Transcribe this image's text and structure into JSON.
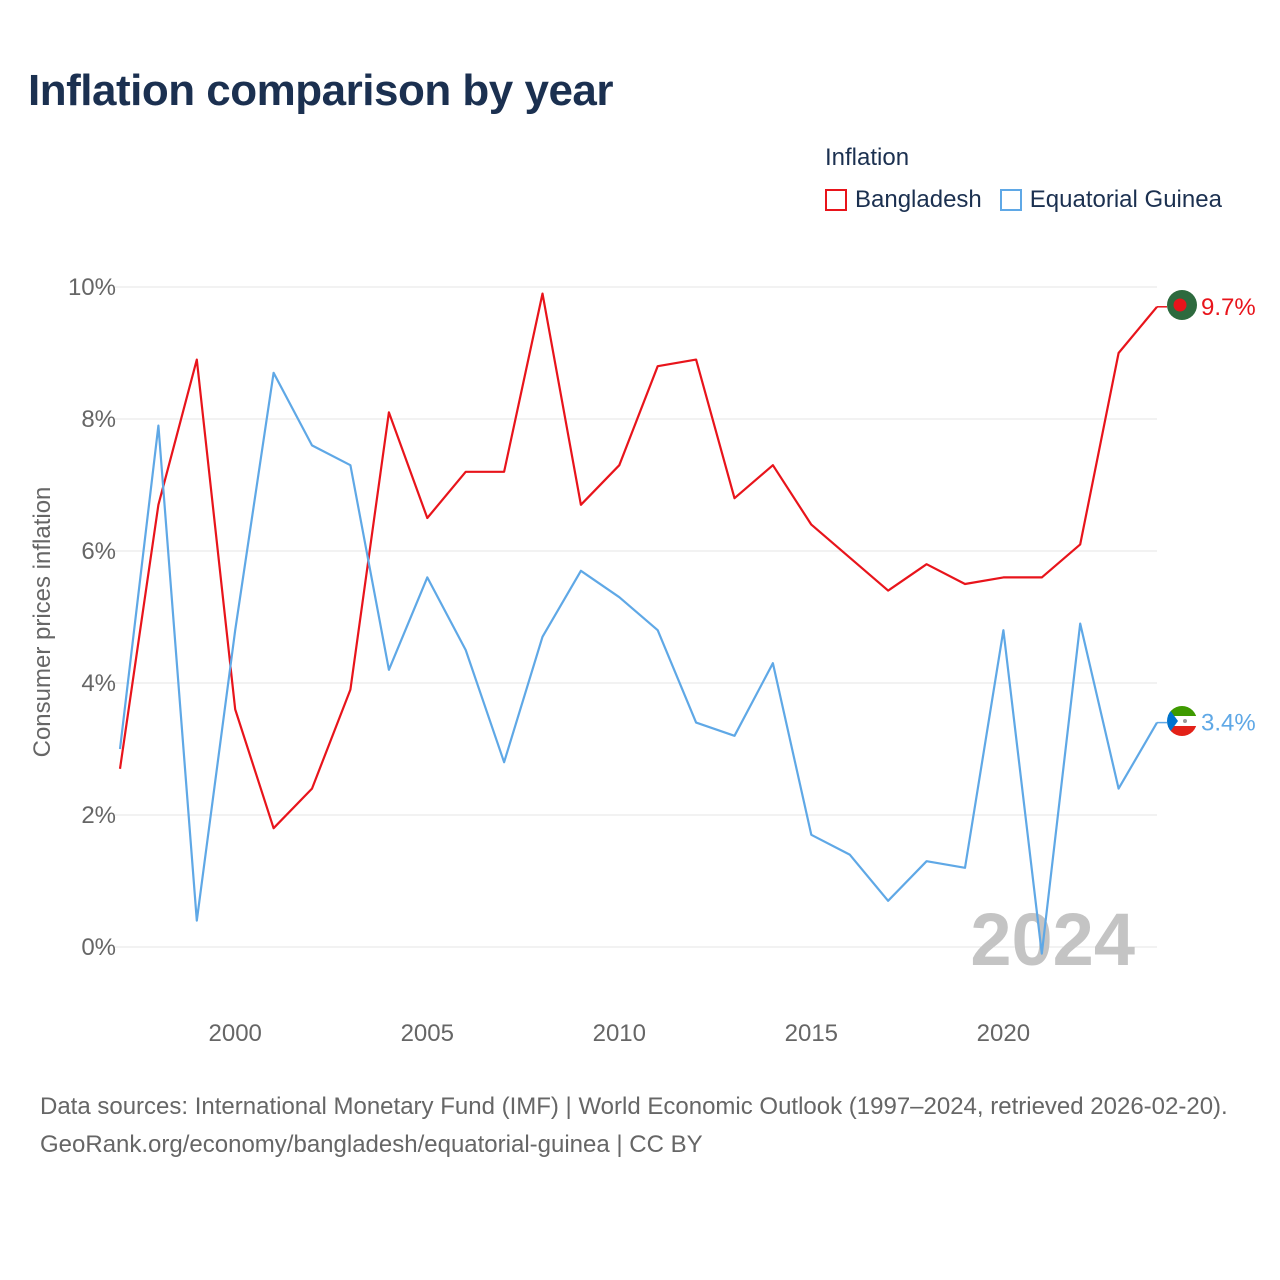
{
  "title": "Inflation comparison by year",
  "legend": {
    "title": "Inflation",
    "items": [
      {
        "name": "Bangladesh",
        "color": "#e8141b"
      },
      {
        "name": "Equatorial Guinea",
        "color": "#5fa8e6"
      }
    ]
  },
  "year_watermark": "2024",
  "footer": {
    "sources": "Data sources: International Monetary Fund (IMF) | World Economic Outlook (1997–2024, retrieved 2026-02-20).",
    "credit": "GeoRank.org/economy/bangladesh/equatorial-guinea | CC BY"
  },
  "chart_data": {
    "type": "line",
    "title": "Inflation comparison by year",
    "xlabel": "",
    "ylabel": "Consumer prices inflation",
    "x": [
      1997,
      1998,
      1999,
      2000,
      2001,
      2002,
      2003,
      2004,
      2005,
      2006,
      2007,
      2008,
      2009,
      2010,
      2011,
      2012,
      2013,
      2014,
      2015,
      2016,
      2017,
      2018,
      2019,
      2020,
      2021,
      2022,
      2023,
      2024
    ],
    "xlim": [
      1997,
      2024
    ],
    "ylim": [
      0,
      10
    ],
    "x_ticks": [
      2000,
      2005,
      2010,
      2015,
      2020
    ],
    "x_tick_labels": [
      "2000",
      "2005",
      "2010",
      "2015",
      "2020"
    ],
    "y_ticks": [
      0,
      2,
      4,
      6,
      8,
      10
    ],
    "y_tick_labels": [
      "0%",
      "2%",
      "4%",
      "6%",
      "8%",
      "10%"
    ],
    "grid": true,
    "legend_position": "top-right",
    "series": [
      {
        "name": "Bangladesh",
        "color": "#e8141b",
        "values": [
          2.7,
          6.7,
          8.9,
          3.6,
          1.8,
          2.4,
          3.9,
          8.1,
          6.5,
          7.2,
          7.2,
          9.9,
          6.7,
          7.3,
          8.8,
          8.9,
          6.8,
          7.3,
          6.4,
          5.9,
          5.4,
          5.8,
          5.5,
          5.6,
          5.6,
          6.1,
          9.0,
          9.7
        ],
        "end_label": "9.7%"
      },
      {
        "name": "Equatorial Guinea",
        "color": "#5fa8e6",
        "values": [
          3.0,
          7.9,
          0.4,
          4.8,
          8.7,
          7.6,
          7.3,
          4.2,
          5.6,
          4.5,
          2.8,
          4.7,
          5.7,
          5.3,
          4.8,
          3.4,
          3.2,
          4.3,
          1.7,
          1.4,
          0.7,
          1.3,
          1.2,
          4.8,
          -0.1,
          4.9,
          2.4,
          3.4
        ],
        "end_label": "3.4%"
      }
    ]
  }
}
